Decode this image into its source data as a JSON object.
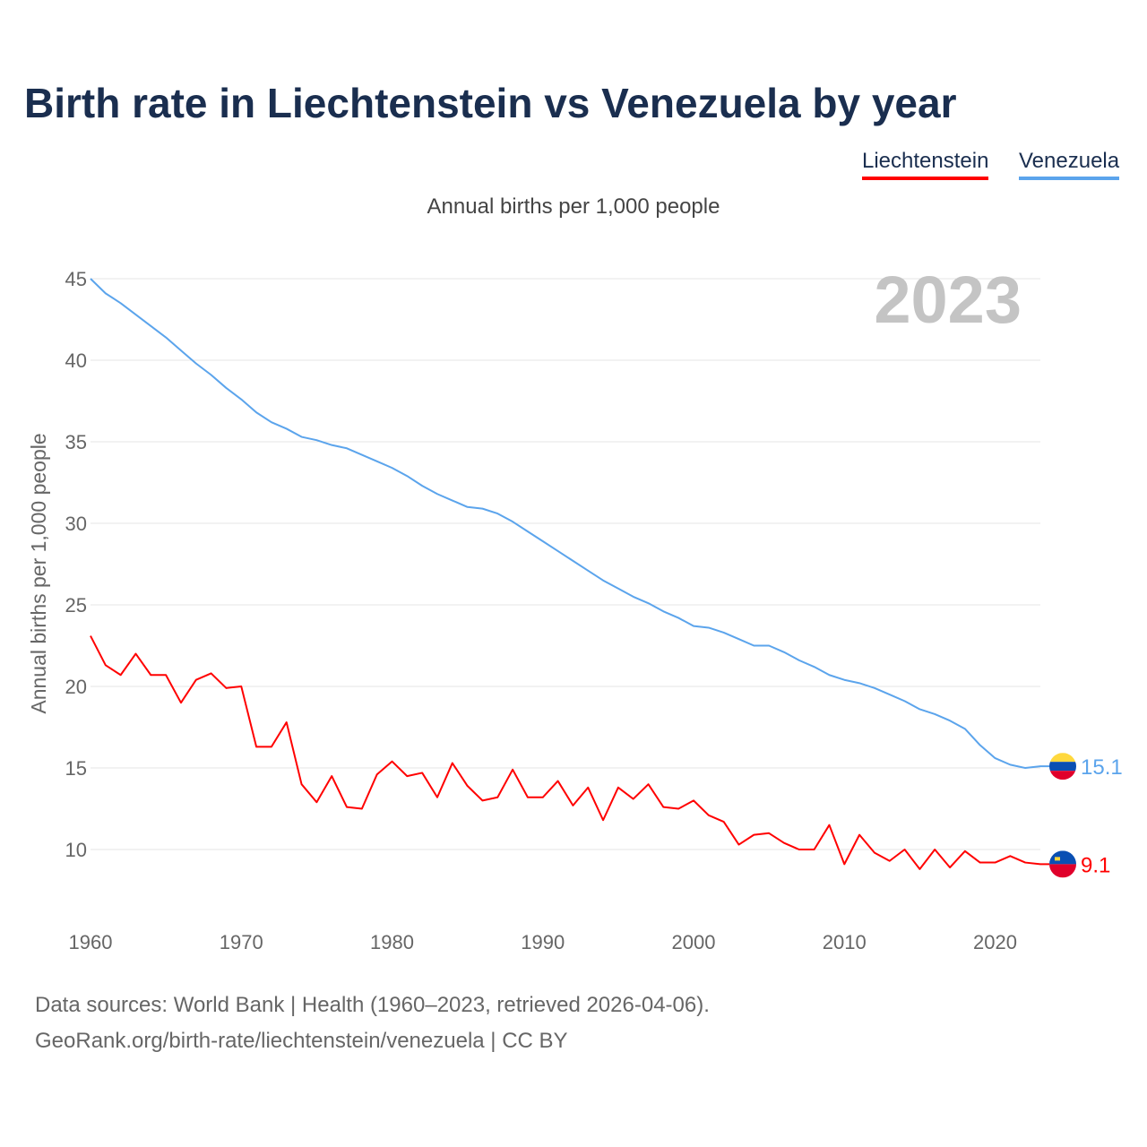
{
  "title": "Birth rate in Liechtenstein vs Venezuela by year",
  "legend": [
    {
      "label": "Liechtenstein",
      "color": "#ff0000"
    },
    {
      "label": "Venezuela",
      "color": "#5ba4ec"
    }
  ],
  "subtitle": "Annual births per 1,000 people",
  "year_watermark": "2023",
  "footer": {
    "line1": "Data sources: World Bank | Health (1960–2023, retrieved 2026-04-06).",
    "line2": "GeoRank.org/birth-rate/liechtenstein/venezuela | CC BY"
  },
  "chart_data": {
    "type": "line",
    "title": "Birth rate in Liechtenstein vs Venezuela by year",
    "xlabel": "",
    "ylabel": "Annual births per 1,000 people",
    "xlim": [
      1960,
      2023
    ],
    "ylim": [
      6.5,
      45
    ],
    "yticks": [
      10,
      15,
      20,
      25,
      30,
      35,
      40,
      45
    ],
    "xticks": [
      1960,
      1970,
      1980,
      1990,
      2000,
      2010,
      2020
    ],
    "grid": true,
    "legend_position": "top-right",
    "x_start": 1960,
    "series": [
      {
        "name": "Liechtenstein",
        "color": "#ff0000",
        "end_label": "9.1",
        "values": [
          23.1,
          21.3,
          20.7,
          22.0,
          20.7,
          20.7,
          19.0,
          20.4,
          20.8,
          19.9,
          20.0,
          16.3,
          16.3,
          17.8,
          14.0,
          12.9,
          14.5,
          12.6,
          12.5,
          14.6,
          15.4,
          14.5,
          14.7,
          13.2,
          15.3,
          13.9,
          13.0,
          13.2,
          14.9,
          13.2,
          13.2,
          14.2,
          12.7,
          13.8,
          11.8,
          13.8,
          13.1,
          14.0,
          12.6,
          12.5,
          13.0,
          12.1,
          11.7,
          10.3,
          10.9,
          11.0,
          10.4,
          10.0,
          10.0,
          11.5,
          9.1,
          10.9,
          9.8,
          9.3,
          10.0,
          8.8,
          10.0,
          8.9,
          9.9,
          9.2,
          9.2,
          9.6,
          9.2,
          9.1
        ]
      },
      {
        "name": "Venezuela",
        "color": "#5ba4ec",
        "end_label": "15.1",
        "values": [
          45.0,
          44.1,
          43.5,
          42.8,
          42.1,
          41.4,
          40.6,
          39.8,
          39.1,
          38.3,
          37.6,
          36.8,
          36.2,
          35.8,
          35.3,
          35.1,
          34.8,
          34.6,
          34.2,
          33.8,
          33.4,
          32.9,
          32.3,
          31.8,
          31.4,
          31.0,
          30.9,
          30.6,
          30.1,
          29.5,
          28.9,
          28.3,
          27.7,
          27.1,
          26.5,
          26.0,
          25.5,
          25.1,
          24.6,
          24.2,
          23.7,
          23.6,
          23.3,
          22.9,
          22.5,
          22.5,
          22.1,
          21.6,
          21.2,
          20.7,
          20.4,
          20.2,
          19.9,
          19.5,
          19.1,
          18.6,
          18.3,
          17.9,
          17.4,
          16.4,
          15.6,
          15.2,
          15.0,
          15.1
        ]
      }
    ]
  }
}
